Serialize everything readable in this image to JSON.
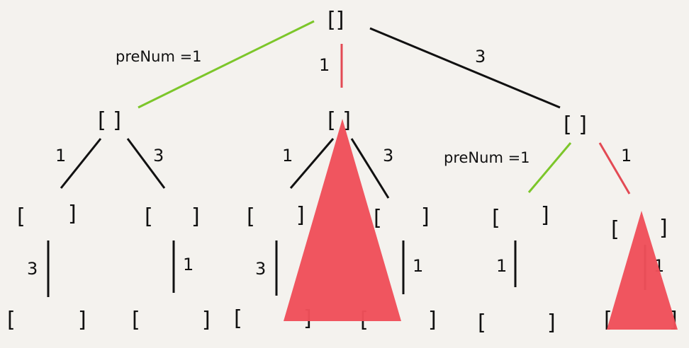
{
  "tree": {
    "root_node": "[]",
    "level1": {
      "left_node": "[ ]",
      "mid_node": "[ ]",
      "right_node": "[ ]",
      "left_edge_label": "preNum =1",
      "mid_edge_label": "1",
      "right_edge_label": "3"
    },
    "level2": {
      "ll_edge": "1",
      "lr_edge": "3",
      "ml_edge": "1",
      "mr_edge": "3",
      "rl_edge_label": "preNum =1",
      "rr_edge": "1",
      "n1_open": "[",
      "n1_close": "]",
      "n2_open": "[",
      "n2_close": "]",
      "n3_open": "[",
      "n3_close": "]",
      "n4_open": "[",
      "n4_close": "]",
      "n5_open": "[",
      "n5_close": "]",
      "n6_open": "[",
      "n6_close": "]"
    },
    "level3": {
      "e1": "3",
      "e2": "1",
      "e3": "3",
      "e4": "1",
      "e5": "1",
      "e6": "1",
      "n1_open": "[",
      "n1_close": "]",
      "n2_open": "[",
      "n2_close": "]",
      "n3_open": "[",
      "n3_close": "]",
      "n4_open": "[",
      "n4_close": "]",
      "n5_open": "[",
      "n5_close": "]",
      "n6_open": "[",
      "n6_close": "]"
    }
  },
  "colors": {
    "black_edge": "#111111",
    "green_edge": "#7cc62a",
    "red_edge": "#e34a54",
    "prune_triangle": "#f0505a"
  }
}
